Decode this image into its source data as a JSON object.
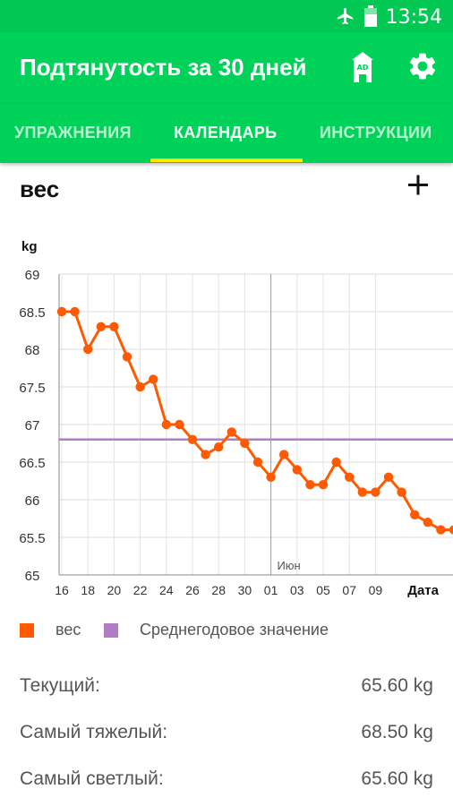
{
  "status_bar": {
    "time": "13:54"
  },
  "app_bar": {
    "title": "Подтянутость за 30 дней",
    "icons": [
      "ad-tower-icon",
      "gear-icon"
    ]
  },
  "tabs": [
    {
      "label": "УПРАЖНЕНИЯ",
      "active": false
    },
    {
      "label": "КАЛЕНДАРЬ",
      "active": true
    },
    {
      "label": "ИНСТРУКЦИИ",
      "active": false
    }
  ],
  "section": {
    "title": "вес",
    "add_icon": "plus-icon"
  },
  "colors": {
    "brand_green": "#00d159",
    "tab_indicator": "#ffea00",
    "series_weight": "#ff5a00",
    "series_average": "#b07cc6"
  },
  "chart_data": {
    "type": "line",
    "ylabel": "kg",
    "xlabel": "Дата",
    "ylim": [
      65,
      69
    ],
    "yticks": [
      "69",
      "68.5",
      "68",
      "67.5",
      "67",
      "66.5",
      "66",
      "65.5",
      "65"
    ],
    "xticks": [
      "16",
      "18",
      "20",
      "22",
      "24",
      "26",
      "28",
      "30",
      "01",
      "03",
      "05",
      "07",
      "09"
    ],
    "month_marker": {
      "label": "Июн",
      "at": "01"
    },
    "grid": true,
    "legend_position": "bottom-left",
    "series": [
      {
        "name": "вес",
        "x": [
          "16",
          "17",
          "18",
          "19",
          "20",
          "21",
          "22",
          "23",
          "24",
          "25",
          "26",
          "27",
          "28",
          "29",
          "30",
          "31",
          "01",
          "02",
          "03",
          "04",
          "05",
          "06",
          "07",
          "08",
          "09",
          "10",
          "11",
          "12",
          "13",
          "14",
          "15"
        ],
        "values": [
          68.5,
          68.5,
          68.0,
          68.3,
          68.3,
          67.9,
          67.5,
          67.6,
          67.0,
          67.0,
          66.8,
          66.6,
          66.7,
          66.9,
          66.75,
          66.5,
          66.3,
          66.6,
          66.4,
          66.2,
          66.2,
          66.5,
          66.3,
          66.1,
          66.1,
          66.3,
          66.1,
          65.8,
          65.7,
          65.6,
          65.6
        ]
      },
      {
        "name": "Среднегодовое значение",
        "constant": 66.8
      }
    ]
  },
  "stats": [
    {
      "label": "Текущий:",
      "value": "65.60 kg"
    },
    {
      "label": "Самый тяжелый:",
      "value": "68.50 kg"
    },
    {
      "label": "Самый светлый:",
      "value": "65.60 kg"
    }
  ]
}
